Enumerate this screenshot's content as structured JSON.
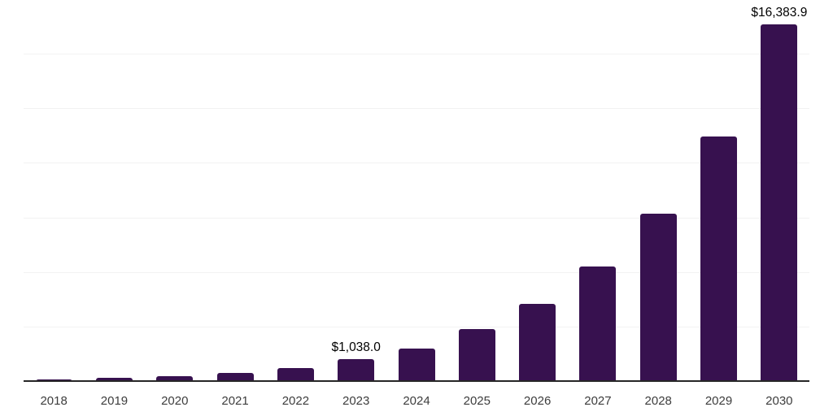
{
  "chart_data": {
    "type": "bar",
    "title": "",
    "xlabel": "",
    "ylabel": "",
    "categories": [
      "2018",
      "2019",
      "2020",
      "2021",
      "2022",
      "2023",
      "2024",
      "2025",
      "2026",
      "2027",
      "2028",
      "2029",
      "2030"
    ],
    "values": [
      110,
      180,
      250,
      400,
      645,
      1038.0,
      1530,
      2410,
      3575,
      5290,
      7710,
      11250,
      16383.9
    ],
    "value_labels": {
      "2023": "$1,038.0",
      "2030": "$16,383.9"
    },
    "ylim": [
      0,
      17500
    ],
    "gridline_step": 2500,
    "grid": "horizontal",
    "legend": "none",
    "colors": {
      "bar": "#37114f",
      "axis_line": "#262626",
      "gridline": "#f2f2f2",
      "tick_label": "#3d3d3d",
      "value_label": "#000000",
      "background": "#ffffff"
    }
  }
}
